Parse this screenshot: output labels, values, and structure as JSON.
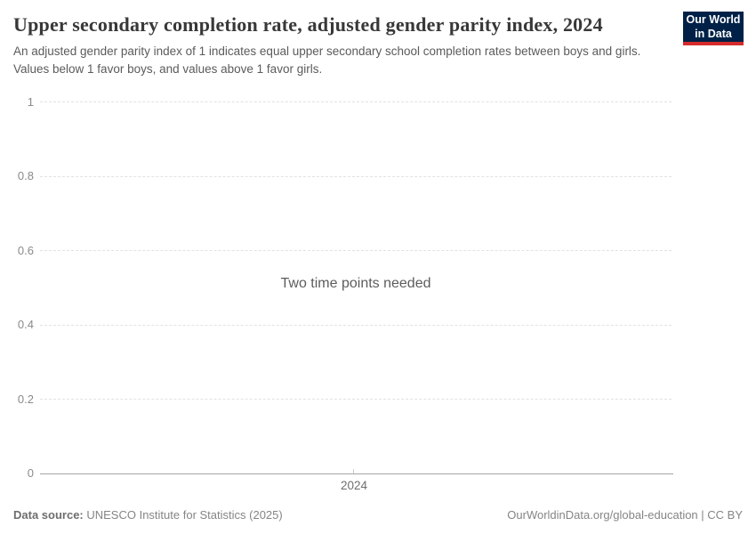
{
  "header": {
    "title": "Upper secondary completion rate, adjusted gender parity index, 2024",
    "subtitle": "An adjusted gender parity index of 1 indicates equal upper secondary school completion rates between boys and girls. Values below 1 favor boys, and values above 1 favor girls.",
    "logo": {
      "line1": "Our World",
      "line2": "in Data",
      "bg_color": "#002147",
      "accent_color": "#d42b2b"
    }
  },
  "chart_data": {
    "type": "line",
    "title": "Upper secondary completion rate, adjusted gender parity index, 2024",
    "series": [],
    "empty_message": "Two time points needed",
    "xlabel": "",
    "ylabel": "",
    "ylim": [
      0,
      1
    ],
    "yticks": [
      0,
      0.2,
      0.4,
      0.6,
      0.8,
      1
    ],
    "ytick_labels": [
      "0",
      "0.2",
      "0.4",
      "0.6",
      "0.8",
      "1"
    ],
    "xticks": [
      2024
    ],
    "xtick_labels": [
      "2024"
    ],
    "grid": true,
    "gridline_color": "#e2e2e2",
    "axis_color": "#a5a5a5",
    "legend": "none"
  },
  "footer": {
    "datasource_label": "Data source:",
    "datasource_value": " UNESCO Institute for Statistics (2025)",
    "attribution": "OurWorldinData.org/global-education | CC BY"
  }
}
